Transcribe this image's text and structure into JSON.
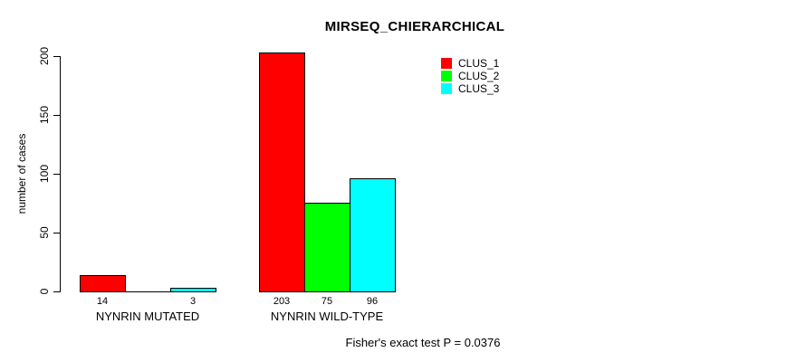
{
  "title": "MIRSEQ_CHIERARCHICAL",
  "footer": "Fisher's exact test P = 0.0376",
  "colors": {
    "clus1": "#ff0000",
    "clus2": "#00ff00",
    "clus3": "#00ffff",
    "axis": "#000000",
    "background": "#ffffff"
  },
  "legend": {
    "position": "top-right-inside",
    "items": [
      {
        "label": "CLUS_1",
        "color": "#ff0000"
      },
      {
        "label": "CLUS_2",
        "color": "#00ff00"
      },
      {
        "label": "CLUS_3",
        "color": "#00ffff"
      }
    ]
  },
  "chart_data": {
    "type": "bar",
    "grouped": true,
    "title": "MIRSEQ_CHIERARCHICAL",
    "xlabel": "",
    "ylabel": "number of cases",
    "categories": [
      "NYNRIN MUTATED",
      "NYNRIN WILD-TYPE"
    ],
    "series": [
      {
        "name": "CLUS_1",
        "color": "#ff0000",
        "values": [
          14,
          203
        ]
      },
      {
        "name": "CLUS_2",
        "color": "#00ff00",
        "values": [
          0,
          75
        ]
      },
      {
        "name": "CLUS_3",
        "color": "#00ffff",
        "values": [
          3,
          96
        ]
      }
    ],
    "bar_value_labels": [
      [
        "14",
        null,
        "3"
      ],
      [
        "203",
        "75",
        "96"
      ]
    ],
    "yticks": [
      0,
      50,
      100,
      150,
      200
    ],
    "ylim": [
      0,
      210
    ],
    "grid": false,
    "legend_position": "upper right",
    "annotation": "Fisher's exact test P = 0.0376"
  }
}
